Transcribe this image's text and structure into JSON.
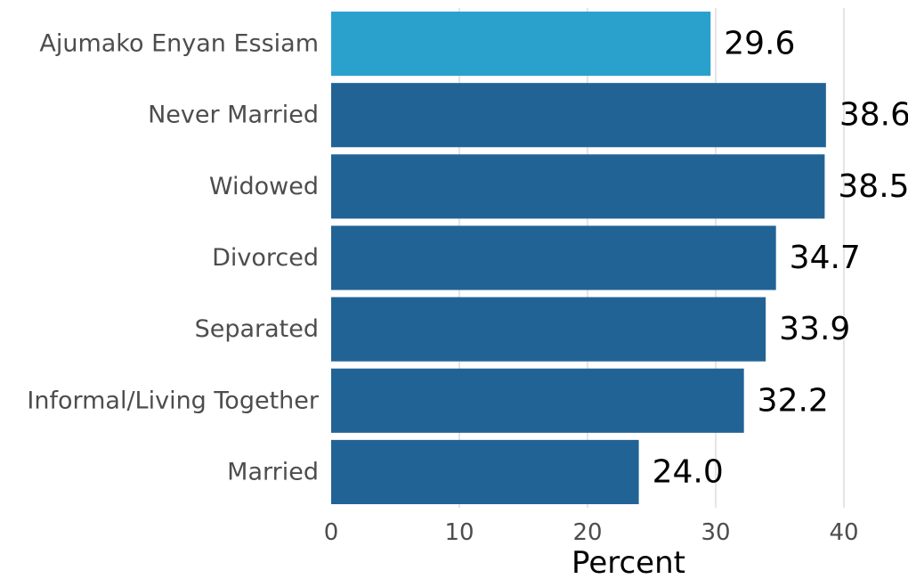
{
  "chart_data": {
    "type": "bar",
    "orientation": "horizontal",
    "categories": [
      "Ajumako Enyan Essiam",
      "Never Married",
      "Widowed",
      "Divorced",
      "Separated",
      "Informal/Living Together",
      "Married"
    ],
    "values": [
      29.6,
      38.6,
      38.5,
      34.7,
      33.9,
      32.2,
      24.0
    ],
    "value_labels": [
      "29.6",
      "38.6",
      "38.5",
      "34.7",
      "33.9",
      "32.2",
      "24.0"
    ],
    "xlabel": "Percent",
    "xlim": [
      0,
      40
    ],
    "xticks": [
      0,
      10,
      20,
      30,
      40
    ],
    "xtick_labels": [
      "0",
      "10",
      "20",
      "30",
      "40"
    ],
    "grid": "vertical",
    "colors": {
      "highlight": "#2aa1cd",
      "default": "#226396"
    },
    "highlight_index": 0
  }
}
